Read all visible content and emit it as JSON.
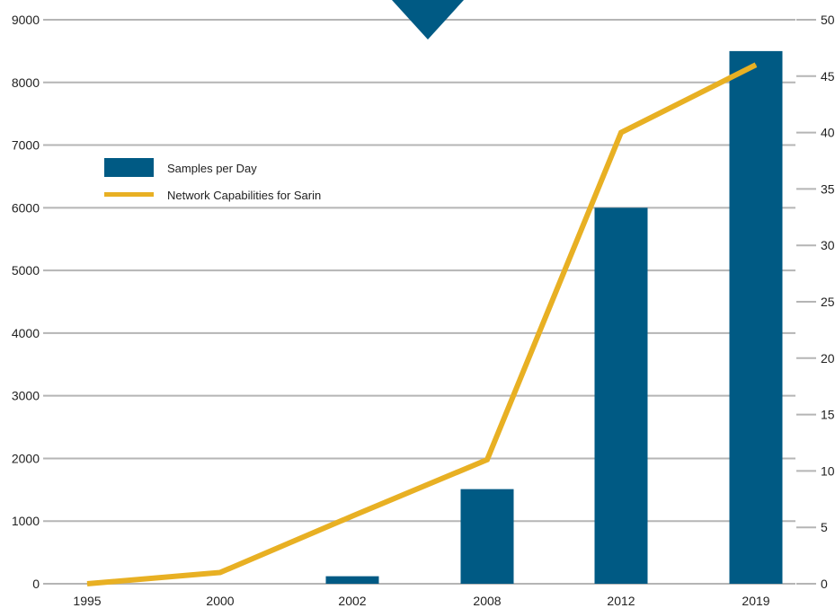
{
  "chart_data": {
    "type": "bar+line",
    "categories": [
      "1995",
      "2000",
      "2002",
      "2008",
      "2012",
      "2019"
    ],
    "series": [
      {
        "name": "Samples per Day",
        "type": "bar",
        "axis": "left",
        "color": "#005a84",
        "values": [
          0,
          0,
          120,
          1510,
          6000,
          8500
        ]
      },
      {
        "name": "Network Capabilities for Sarin",
        "type": "line",
        "axis": "right",
        "color": "#e8b023",
        "values": [
          0,
          1,
          6,
          11,
          40,
          46
        ]
      }
    ],
    "y_left": {
      "ylim": [
        0,
        9000
      ],
      "ticks": [
        "0",
        "1000",
        "2000",
        "3000",
        "4000",
        "5000",
        "6000",
        "7000",
        "8000",
        "9000"
      ]
    },
    "y_right": {
      "ylim": [
        0,
        50
      ],
      "ticks": [
        "0",
        "5",
        "10",
        "15",
        "20",
        "25",
        "30",
        "35",
        "40",
        "45",
        "50"
      ]
    },
    "grid": true,
    "legend": "upper-left",
    "decoration": {
      "name": "triangle-marker-icon",
      "color": "#005a84"
    }
  }
}
